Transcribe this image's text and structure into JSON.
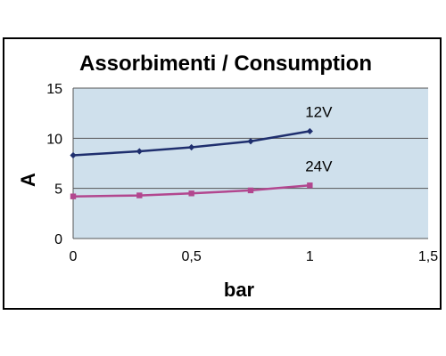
{
  "chart_data": {
    "type": "line",
    "title": "Assorbimenti / Consumption",
    "xlabel": "bar",
    "ylabel": "A",
    "xlim": [
      0,
      1.5
    ],
    "ylim": [
      0,
      15
    ],
    "x_ticks": [
      "0",
      "0,5",
      "1",
      "1,5"
    ],
    "y_ticks": [
      "0",
      "5",
      "10",
      "15"
    ],
    "grid": "horizontal",
    "legend": "none",
    "plot_background": "#cfe0ec",
    "series": [
      {
        "name": "12V",
        "color": "#1f2f6e",
        "marker": "diamond",
        "x": [
          0,
          0.28,
          0.5,
          0.75,
          1.0
        ],
        "y": [
          8.3,
          8.7,
          9.1,
          9.7,
          10.7
        ]
      },
      {
        "name": "24V",
        "color": "#b2478f",
        "marker": "square",
        "x": [
          0,
          0.28,
          0.5,
          0.75,
          1.0
        ],
        "y": [
          4.2,
          4.3,
          4.5,
          4.8,
          5.3
        ]
      }
    ]
  }
}
